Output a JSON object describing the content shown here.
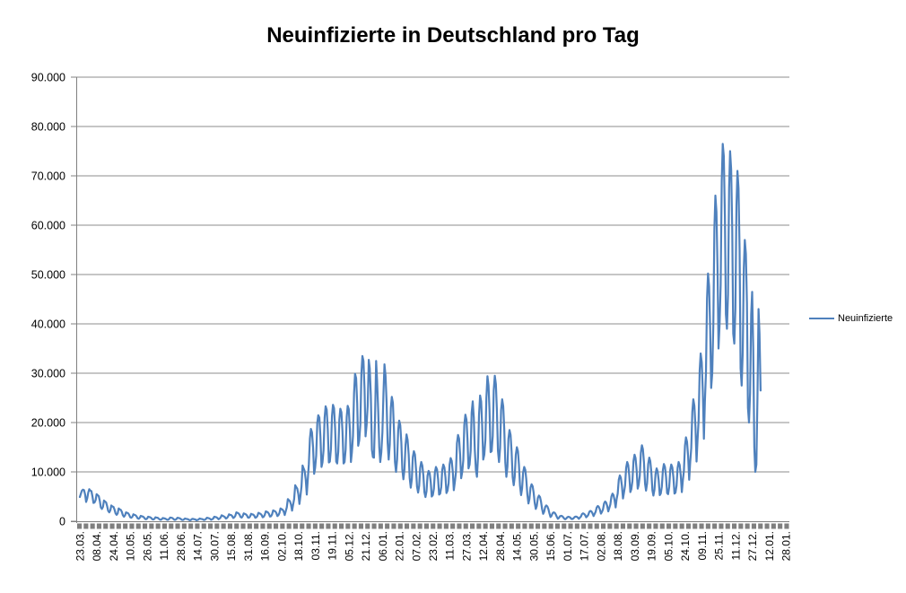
{
  "title": "Neuinfizierte in Deutschland pro Tag",
  "legend": {
    "label": "Neuinfizierte",
    "position": "right"
  },
  "colors": {
    "series": "#4F81BD",
    "gridline": "#8C8C8C",
    "axis": "#808080",
    "tick_strip": "#7F7F7F",
    "text": "#000000",
    "background": "#FFFFFF"
  },
  "chart_data": {
    "type": "line",
    "title": "Neuinfizierte in Deutschland pro Tag",
    "xlabel": "",
    "ylabel": "",
    "ylim": [
      0,
      90000
    ],
    "y_tick_step": 10000,
    "y_tick_labels": [
      "0",
      "10.000",
      "20.000",
      "30.000",
      "40.000",
      "50.000",
      "60.000",
      "70.000",
      "80.000",
      "90.000"
    ],
    "x_tick_labels": [
      "23.03.",
      "08.04.",
      "24.04.",
      "10.05.",
      "26.05.",
      "11.06.",
      "28.06.",
      "14.07.",
      "30.07.",
      "15.08.",
      "31.08.",
      "16.09.",
      "02.10.",
      "18.10.",
      "03.11.",
      "19.11.",
      "05.12.",
      "21.12.",
      "06.01.",
      "22.01.",
      "07.02.",
      "23.02.",
      "11.03.",
      "27.03.",
      "12.04.",
      "28.04.",
      "14.05.",
      "30.05.",
      "15.06.",
      "01.07.",
      "17.07.",
      "02.08.",
      "18.08.",
      "03.09.",
      "19.09.",
      "05.10.",
      "24.10.",
      "09.11.",
      "25.11.",
      "11.12.",
      "27.12.",
      "12.01.",
      "28.01."
    ],
    "x_label_interval": 16,
    "total_categories": 673,
    "grid": "horizontal",
    "legend_position": "right",
    "series": [
      {
        "name": "Neuinfizierte",
        "color": "#4F81BD",
        "values": [
          4900,
          5600,
          6200,
          6400,
          6300,
          5400,
          3900,
          4600,
          5800,
          6500,
          6200,
          6100,
          5000,
          3700,
          3800,
          4300,
          5500,
          5300,
          5100,
          4100,
          2800,
          2500,
          2900,
          4200,
          4000,
          3800,
          3100,
          2100,
          1800,
          2200,
          3200,
          3000,
          2900,
          2400,
          1600,
          1300,
          1600,
          2600,
          2400,
          2300,
          1900,
          1200,
          900,
          1200,
          1800,
          1700,
          1600,
          1300,
          800,
          700,
          900,
          1400,
          1300,
          1200,
          1000,
          600,
          500,
          700,
          1100,
          1000,
          950,
          800,
          500,
          400,
          550,
          900,
          850,
          800,
          650,
          400,
          350,
          500,
          800,
          750,
          700,
          550,
          350,
          300,
          400,
          650,
          600,
          550,
          450,
          300,
          300,
          450,
          750,
          700,
          650,
          500,
          300,
          300,
          450,
          700,
          650,
          600,
          500,
          300,
          250,
          350,
          550,
          500,
          450,
          400,
          250,
          200,
          300,
          500,
          450,
          400,
          350,
          200,
          250,
          350,
          550,
          500,
          450,
          400,
          250,
          300,
          450,
          700,
          650,
          600,
          500,
          300,
          400,
          550,
          900,
          850,
          800,
          650,
          400,
          550,
          750,
          1200,
          1100,
          1000,
          850,
          550,
          650,
          900,
          1400,
          1300,
          1250,
          1050,
          650,
          800,
          1100,
          1800,
          1700,
          1600,
          1350,
          850,
          750,
          1000,
          1600,
          1500,
          1400,
          1200,
          750,
          700,
          950,
          1500,
          1400,
          1350,
          1150,
          700,
          800,
          1050,
          1700,
          1600,
          1500,
          1300,
          800,
          900,
          1250,
          2000,
          1900,
          1800,
          1500,
          950,
          1000,
          1400,
          2200,
          2100,
          2000,
          1700,
          1050,
          1200,
          1650,
          2600,
          2450,
          2350,
          2000,
          1250,
          2000,
          2800,
          4500,
          4250,
          4050,
          3400,
          2150,
          3300,
          4500,
          7300,
          6900,
          6600,
          5500,
          3500,
          5100,
          7000,
          11300,
          10700,
          10200,
          8500,
          5400,
          8400,
          11600,
          16800,
          18700,
          18000,
          15000,
          9600,
          10800,
          13300,
          19900,
          21500,
          21000,
          17200,
          11000,
          11900,
          14400,
          21000,
          23300,
          22600,
          18600,
          11900,
          12100,
          14600,
          21300,
          23600,
          22900,
          18800,
          12100,
          11700,
          14100,
          20600,
          22800,
          22100,
          18200,
          11700,
          12000,
          14500,
          21100,
          23400,
          22700,
          18700,
          12000,
          14000,
          17300,
          26000,
          29900,
          29000,
          23900,
          15300,
          16400,
          19600,
          30000,
          33500,
          32500,
          26800,
          17200,
          19500,
          23400,
          32700,
          31000,
          25500,
          14500,
          13000,
          12900,
          21000,
          32500,
          28500,
          22500,
          15000,
          12000,
          14000,
          18000,
          26000,
          31800,
          29500,
          24000,
          16000,
          12500,
          15500,
          23000,
          25200,
          24000,
          18500,
          12000,
          10000,
          12500,
          18500,
          20400,
          19500,
          16000,
          10500,
          8500,
          10500,
          15500,
          17600,
          16500,
          13500,
          8800,
          6800,
          8500,
          13000,
          14200,
          13500,
          10500,
          7000,
          5800,
          7200,
          10800,
          12000,
          11300,
          9200,
          5900,
          4900,
          6100,
          9200,
          10200,
          9700,
          7900,
          5000,
          5300,
          6600,
          9900,
          11000,
          10500,
          8500,
          5400,
          5600,
          6900,
          10400,
          11500,
          10900,
          8900,
          5700,
          6200,
          7700,
          11500,
          12800,
          12200,
          9900,
          6300,
          8000,
          10000,
          15800,
          17500,
          16700,
          13600,
          8700,
          10000,
          12400,
          19500,
          21600,
          20600,
          16800,
          10700,
          11500,
          14300,
          22000,
          24300,
          21000,
          14500,
          10500,
          9000,
          13000,
          21500,
          25500,
          24300,
          19500,
          12500,
          13500,
          16500,
          25000,
          29400,
          27500,
          22500,
          14000,
          14200,
          17300,
          26500,
          29500,
          27800,
          22700,
          14300,
          12000,
          14800,
          22500,
          24700,
          23300,
          18900,
          11900,
          9000,
          11100,
          16700,
          18500,
          17500,
          14200,
          8900,
          7300,
          9000,
          13500,
          15000,
          14200,
          11500,
          7200,
          5300,
          6600,
          9900,
          11000,
          10400,
          8500,
          5400,
          3600,
          4500,
          6800,
          7500,
          7100,
          5800,
          3700,
          2500,
          3100,
          4700,
          5200,
          4900,
          4000,
          2500,
          1500,
          1900,
          2900,
          3200,
          3000,
          2500,
          1600,
          850,
          1100,
          1600,
          1800,
          1700,
          1400,
          900,
          500,
          650,
          1000,
          1100,
          1050,
          850,
          550,
          400,
          550,
          800,
          900,
          850,
          700,
          450,
          450,
          600,
          850,
          950,
          900,
          750,
          500,
          750,
          950,
          1450,
          1600,
          1500,
          1250,
          800,
          1000,
          1300,
          1900,
          2100,
          2000,
          1600,
          1050,
          1500,
          1900,
          2800,
          3100,
          2900,
          2400,
          1550,
          1900,
          2400,
          3600,
          4000,
          3800,
          3100,
          2000,
          2700,
          3400,
          5000,
          5600,
          5300,
          4300,
          2800,
          4500,
          5600,
          8400,
          9300,
          8800,
          7200,
          4600,
          5800,
          7200,
          10800,
          12000,
          11400,
          9300,
          5900,
          6500,
          8100,
          12200,
          13500,
          12800,
          10400,
          6600,
          7400,
          9200,
          13900,
          15400,
          14600,
          11900,
          7600,
          6200,
          7700,
          11600,
          12900,
          12200,
          10000,
          6300,
          5200,
          6400,
          9600,
          10700,
          10100,
          8300,
          5300,
          5600,
          7000,
          10400,
          11600,
          11000,
          9000,
          5700,
          5500,
          6900,
          10400,
          11500,
          10900,
          8900,
          5600,
          5800,
          7200,
          10800,
          12000,
          11400,
          9300,
          5900,
          8200,
          10200,
          15300,
          17000,
          16100,
          13200,
          8400,
          11900,
          14800,
          22200,
          24700,
          23400,
          19100,
          12100,
          16400,
          20400,
          30600,
          34000,
          32200,
          26300,
          16700,
          24200,
          30100,
          45200,
          50200,
          47600,
          38900,
          27000,
          30000,
          39600,
          59400,
          66000,
          62700,
          51200,
          35000,
          40000,
          48000,
          69000,
          76500,
          74000,
          62000,
          42000,
          39000,
          46000,
          67500,
          75000,
          71300,
          59000,
          38000,
          36000,
          43000,
          64000,
          71000,
          67500,
          55000,
          31000,
          27500,
          34200,
          51300,
          57000,
          54200,
          44200,
          23000,
          20000,
          26000,
          41900,
          46500,
          35000,
          15000,
          10000,
          11500,
          25000,
          43000,
          38000,
          26500
        ]
      }
    ]
  }
}
